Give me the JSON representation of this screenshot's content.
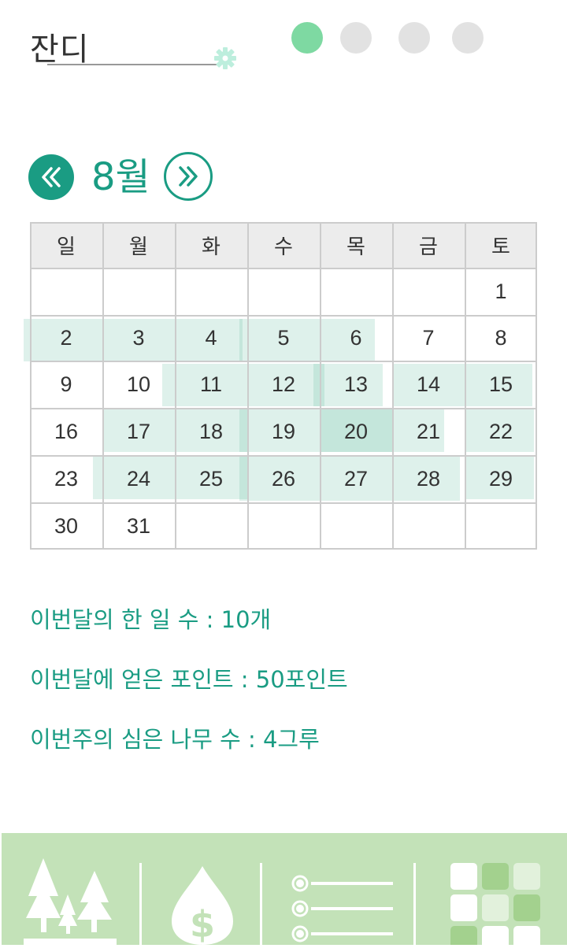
{
  "header": {
    "title": "잔디",
    "page_indicator": {
      "count": 4,
      "active_index": 0
    },
    "icons": [
      "gear-icon"
    ]
  },
  "month_nav": {
    "month_label": "8월",
    "prev_icon": "double-chevron-left-icon",
    "next_icon": "double-chevron-right-icon"
  },
  "calendar": {
    "weekdays": [
      "일",
      "월",
      "화",
      "수",
      "목",
      "금",
      "토"
    ],
    "weeks": [
      [
        "",
        "",
        "",
        "",
        "",
        "",
        "1"
      ],
      [
        "2",
        "3",
        "4",
        "5",
        "6",
        "7",
        "8"
      ],
      [
        "9",
        "10",
        "11",
        "12",
        "13",
        "14",
        "15"
      ],
      [
        "16",
        "17",
        "18",
        "19",
        "20",
        "21",
        "22"
      ],
      [
        "23",
        "24",
        "25",
        "26",
        "27",
        "28",
        "29"
      ],
      [
        "30",
        "31",
        "",
        "",
        "",
        "",
        ""
      ]
    ]
  },
  "stats": {
    "tasks_done": "이번달의 한 일 수 : 10개",
    "points_earned": "이번달에 얻은 포인트 : 50포인트",
    "trees_planted": "이번주의 심은 나무 수 : 4그루"
  },
  "bottom_nav": {
    "tabs": [
      "forest-icon",
      "money-drop-icon",
      "list-icon",
      "grid-icon"
    ]
  },
  "colors": {
    "accent": "#1a9c83",
    "dot_active": "#7ed9a2",
    "dot_inactive": "#e2e2e2",
    "highlight": "#68c0a6",
    "bottom_bar": "#c3e2b8"
  }
}
